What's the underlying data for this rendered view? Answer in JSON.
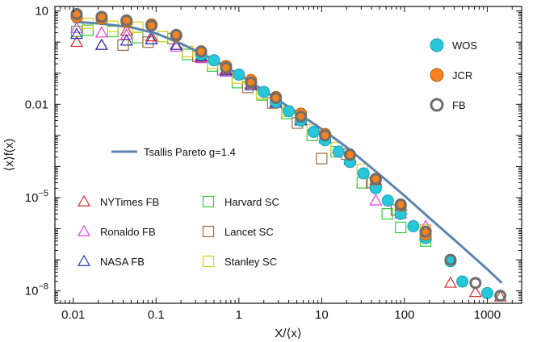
{
  "chart_data": {
    "type": "scatter",
    "xlabel": "X/⟨x⟩",
    "ylabel": "⟨x⟩f(x)",
    "xscale": "log",
    "yscale": "log",
    "xlim": [
      0.006,
      2600
    ],
    "ylim": [
      4e-09,
      14
    ],
    "x_ticks": [
      {
        "value": 0.01,
        "label": "0.01"
      },
      {
        "value": 0.1,
        "label": "0.1"
      },
      {
        "value": 1,
        "label": "1"
      },
      {
        "value": 10,
        "label": "10"
      },
      {
        "value": 100,
        "label": "100"
      },
      {
        "value": 1000,
        "label": "1000"
      }
    ],
    "y_ticks": [
      {
        "value": 10,
        "base": "10",
        "exp": ""
      },
      {
        "value": 0.01,
        "base": "0.01",
        "exp": ""
      },
      {
        "value": 1e-05,
        "base": "10",
        "exp": "−5"
      },
      {
        "value": 1e-08,
        "base": "10",
        "exp": "−8"
      }
    ],
    "fit": {
      "name": "Tsallis Pareto g=1.4",
      "color": "#5b84b1",
      "x": [
        0.01,
        0.02,
        0.05,
        0.1,
        0.2,
        0.5,
        1,
        2,
        5,
        10,
        20,
        50,
        100,
        200,
        500,
        1000,
        1500
      ],
      "y": [
        4.5,
        4.0,
        3.0,
        1.9,
        0.9,
        0.27,
        0.09,
        0.028,
        0.0055,
        0.0016,
        0.00042,
        5.5e-05,
        1.15e-05,
        2.2e-06,
        2.6e-07,
        5e-08,
        1.8e-08
      ]
    },
    "series": [
      {
        "name": "WOS",
        "marker": "circle-filled",
        "color": "#27c6d9",
        "stroke": "#1aa2b5",
        "x": [
          0.35,
          0.5,
          0.7,
          1.0,
          1.4,
          2.0,
          2.8,
          4.0,
          5.6,
          8.0,
          11,
          16,
          22,
          32,
          45,
          63,
          90,
          128,
          180,
          360,
          500,
          1000
        ],
        "y": [
          0.4,
          0.26,
          0.16,
          0.09,
          0.05,
          0.025,
          0.012,
          0.006,
          0.003,
          0.0013,
          0.0007,
          0.0003,
          0.00014,
          6e-05,
          2e-05,
          8e-06,
          3e-06,
          1.2e-06,
          5e-07,
          9e-08,
          2e-08,
          8.5e-09
        ]
      },
      {
        "name": "JCR",
        "marker": "circle-filled",
        "color": "#f5821f",
        "stroke": "#b95e10",
        "x": [
          0.011,
          0.022,
          0.044,
          0.088,
          0.175,
          0.35,
          0.7,
          1.4,
          2.8,
          5.6,
          11,
          22,
          45,
          90,
          180
        ],
        "y": [
          6.5,
          5.6,
          4.5,
          3.7,
          1.6,
          0.5,
          0.17,
          0.06,
          0.017,
          0.005,
          0.0011,
          0.00024,
          3.8e-05,
          5.5e-06,
          6.5e-07
        ]
      },
      {
        "name": "FB",
        "marker": "circle-open",
        "color": "#6e6e6e",
        "stroke": "#6e6e6e",
        "x": [
          0.011,
          0.022,
          0.044,
          0.088,
          0.175,
          0.35,
          0.7,
          1.4,
          2.8,
          5.6,
          11,
          22,
          45,
          90,
          180,
          360,
          720,
          1440
        ],
        "y": [
          8.0,
          6.5,
          5.0,
          3.4,
          1.7,
          0.5,
          0.15,
          0.05,
          0.016,
          0.004,
          0.001,
          0.00024,
          4e-05,
          6e-06,
          8e-07,
          1e-07,
          1.8e-08,
          7e-09
        ]
      },
      {
        "name": "NYTimes FB",
        "marker": "triangle",
        "color": "#d62828",
        "x": [
          0.011,
          0.022,
          0.044,
          0.088,
          0.175,
          0.35,
          0.7,
          1.4,
          2.8,
          5.6,
          11,
          22,
          45,
          90,
          180,
          360,
          720,
          1440
        ],
        "y": [
          1.0,
          0.8,
          2.3,
          1.5,
          0.8,
          0.33,
          0.13,
          0.045,
          0.014,
          0.0035,
          0.0009,
          0.0002,
          3.5e-05,
          5.5e-06,
          6e-07,
          1.8e-08,
          9e-09,
          6.5e-09
        ]
      },
      {
        "name": "Ronaldo FB",
        "marker": "triangle",
        "color": "#e040e0",
        "x": [
          0.011,
          0.022,
          0.044,
          0.088,
          0.175,
          0.35,
          0.7,
          1.4,
          2.8,
          5.6,
          11,
          22,
          45,
          90,
          180
        ],
        "y": [
          2.8,
          2.0,
          1.7,
          1.2,
          0.7,
          0.3,
          0.11,
          0.04,
          0.012,
          0.003,
          0.0008,
          0.00018,
          8e-06,
          3e-06,
          1.2e-06
        ]
      },
      {
        "name": "NASA FB",
        "marker": "triangle",
        "color": "#2233bb",
        "x": [
          0.011,
          0.022,
          0.044,
          0.088,
          0.175,
          0.35,
          0.7,
          1.4,
          2.8,
          5.6,
          11,
          22,
          45,
          90,
          180
        ],
        "y": [
          1.8,
          0.8,
          1.1,
          1.2,
          0.8,
          0.35,
          0.12,
          0.04,
          0.011,
          0.003,
          0.0008,
          0.00016,
          3e-05,
          4e-06,
          6e-07
        ]
      },
      {
        "name": "Harvard SC",
        "marker": "square",
        "color": "#33cc33",
        "x": [
          0.011,
          0.015,
          0.03,
          0.06,
          0.12,
          0.24,
          0.48,
          0.96,
          1.9,
          3.8,
          7.7,
          15,
          31,
          62,
          90,
          180
        ],
        "y": [
          2.2,
          2.4,
          2.2,
          1.4,
          1.5,
          0.4,
          0.17,
          0.05,
          0.02,
          0.005,
          0.001,
          0.0003,
          3e-05,
          3e-06,
          1.1e-06,
          4e-07
        ]
      },
      {
        "name": "Lancet SC",
        "marker": "square",
        "color": "#a06a3c",
        "x": [
          0.04,
          0.08,
          0.16,
          0.32,
          0.64,
          1.28,
          2.56,
          5.1,
          10,
          20,
          40,
          80
        ],
        "y": [
          0.8,
          1.0,
          1.3,
          0.35,
          0.13,
          0.035,
          0.011,
          0.0025,
          0.00018,
          0.00025,
          3e-05,
          4e-06
        ]
      },
      {
        "name": "Stanley SC",
        "marker": "square",
        "color": "#ddcc11",
        "x": [
          0.015,
          0.03,
          0.06,
          0.12,
          0.24,
          0.48,
          0.96,
          1.9,
          3.8,
          7.7,
          15,
          31,
          45,
          90,
          180
        ],
        "y": [
          4.0,
          3.2,
          3.0,
          1.5,
          0.5,
          0.21,
          0.07,
          0.022,
          0.006,
          0.0015,
          0.0004,
          8e-05,
          2.5e-05,
          4.5e-06,
          9e-07
        ]
      }
    ],
    "legends": {
      "fit_label": "Tsallis Pareto g=1.4"
    }
  }
}
